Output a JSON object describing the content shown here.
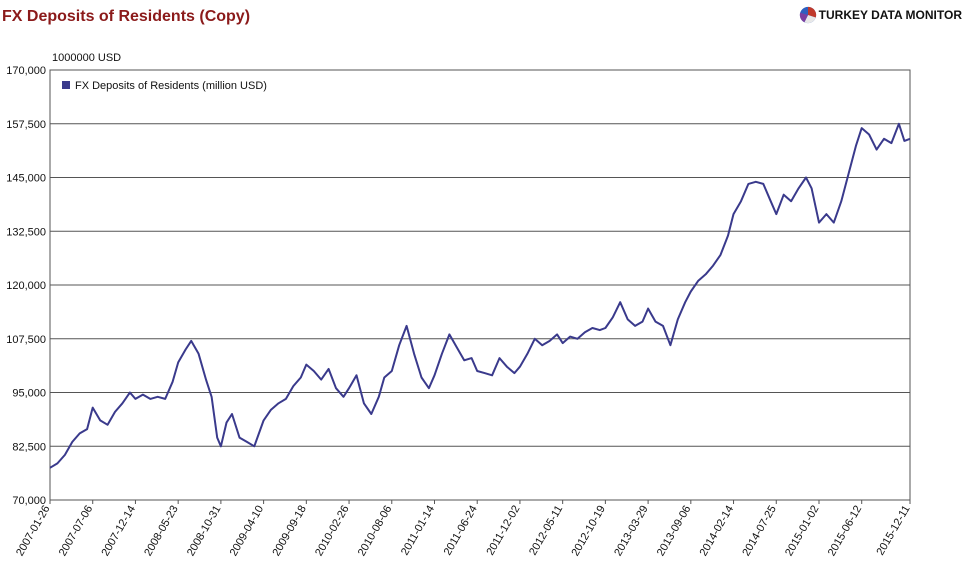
{
  "header": {
    "title": "FX Deposits of Residents (Copy)",
    "brand": "TURKEY DATA MONITOR",
    "brand_icon": "pie-logo-icon"
  },
  "colors": {
    "title": "#8b1a1a",
    "series": "#3a3a8c",
    "grid": "#555555"
  },
  "chart_data": {
    "type": "line",
    "y_unit_label": "1000000 USD",
    "ylim": [
      70000,
      170000
    ],
    "y_ticks": [
      "70,000",
      "82,500",
      "95,000",
      "107,500",
      "120,000",
      "132,500",
      "145,000",
      "157,500",
      "170,000"
    ],
    "y_tick_values": [
      70000,
      82500,
      95000,
      107500,
      120000,
      132500,
      145000,
      157500,
      170000
    ],
    "x_range": [
      "2007-01-26",
      "2015-12-11"
    ],
    "x_ticks": [
      "2007-01-26",
      "2007-07-06",
      "2007-12-14",
      "2008-05-23",
      "2008-10-31",
      "2009-04-10",
      "2009-09-18",
      "2010-02-26",
      "2010-08-06",
      "2011-01-14",
      "2011-06-24",
      "2011-12-02",
      "2012-05-11",
      "2012-10-19",
      "2013-03-29",
      "2013-09-06",
      "2014-02-14",
      "2014-07-25",
      "2015-01-02",
      "2015-06-12",
      "2015-12-11"
    ],
    "grid": true,
    "legend_position": "top-left",
    "series": [
      {
        "name": "FX Deposits of Residents (million USD)",
        "points": [
          [
            "2007-01-26",
            77500
          ],
          [
            "2007-02-23",
            78500
          ],
          [
            "2007-03-23",
            80500
          ],
          [
            "2007-04-20",
            83500
          ],
          [
            "2007-05-18",
            85500
          ],
          [
            "2007-06-15",
            86500
          ],
          [
            "2007-07-06",
            91500
          ],
          [
            "2007-08-03",
            88500
          ],
          [
            "2007-08-31",
            87500
          ],
          [
            "2007-09-28",
            90500
          ],
          [
            "2007-10-26",
            92500
          ],
          [
            "2007-11-23",
            95000
          ],
          [
            "2007-12-14",
            93500
          ],
          [
            "2008-01-11",
            94500
          ],
          [
            "2008-02-08",
            93500
          ],
          [
            "2008-03-07",
            94000
          ],
          [
            "2008-04-04",
            93500
          ],
          [
            "2008-05-02",
            97500
          ],
          [
            "2008-05-23",
            102000
          ],
          [
            "2008-06-20",
            105000
          ],
          [
            "2008-07-11",
            107000
          ],
          [
            "2008-08-08",
            104000
          ],
          [
            "2008-09-05",
            98000
          ],
          [
            "2008-09-26",
            94000
          ],
          [
            "2008-10-17",
            84500
          ],
          [
            "2008-10-31",
            82500
          ],
          [
            "2008-11-21",
            88000
          ],
          [
            "2008-12-12",
            90000
          ],
          [
            "2009-01-09",
            84500
          ],
          [
            "2009-02-06",
            83500
          ],
          [
            "2009-03-06",
            82500
          ],
          [
            "2009-04-10",
            88500
          ],
          [
            "2009-05-08",
            91000
          ],
          [
            "2009-06-05",
            92500
          ],
          [
            "2009-07-03",
            93500
          ],
          [
            "2009-07-31",
            96500
          ],
          [
            "2009-08-28",
            98500
          ],
          [
            "2009-09-18",
            101500
          ],
          [
            "2009-10-16",
            100000
          ],
          [
            "2009-11-13",
            98000
          ],
          [
            "2009-12-11",
            100500
          ],
          [
            "2010-01-08",
            96000
          ],
          [
            "2010-02-05",
            94000
          ],
          [
            "2010-02-26",
            96000
          ],
          [
            "2010-03-26",
            99000
          ],
          [
            "2010-04-23",
            92500
          ],
          [
            "2010-05-21",
            90000
          ],
          [
            "2010-06-18",
            94000
          ],
          [
            "2010-07-09",
            98500
          ],
          [
            "2010-08-06",
            100000
          ],
          [
            "2010-09-03",
            106000
          ],
          [
            "2010-10-01",
            110500
          ],
          [
            "2010-10-29",
            104000
          ],
          [
            "2010-11-26",
            98500
          ],
          [
            "2010-12-24",
            96000
          ],
          [
            "2011-01-14",
            99000
          ],
          [
            "2011-02-11",
            104000
          ],
          [
            "2011-03-11",
            108500
          ],
          [
            "2011-04-08",
            105500
          ],
          [
            "2011-05-06",
            102500
          ],
          [
            "2011-06-03",
            103000
          ],
          [
            "2011-06-24",
            100000
          ],
          [
            "2011-07-22",
            99500
          ],
          [
            "2011-08-19",
            99000
          ],
          [
            "2011-09-16",
            103000
          ],
          [
            "2011-10-14",
            101000
          ],
          [
            "2011-11-11",
            99500
          ],
          [
            "2011-12-02",
            101000
          ],
          [
            "2011-12-30",
            104000
          ],
          [
            "2012-01-27",
            107500
          ],
          [
            "2012-02-24",
            106000
          ],
          [
            "2012-03-23",
            107000
          ],
          [
            "2012-04-20",
            108500
          ],
          [
            "2012-05-11",
            106500
          ],
          [
            "2012-06-08",
            108000
          ],
          [
            "2012-07-06",
            107500
          ],
          [
            "2012-08-03",
            109000
          ],
          [
            "2012-08-31",
            110000
          ],
          [
            "2012-09-28",
            109500
          ],
          [
            "2012-10-19",
            110000
          ],
          [
            "2012-11-16",
            112500
          ],
          [
            "2012-12-14",
            116000
          ],
          [
            "2013-01-11",
            112000
          ],
          [
            "2013-02-08",
            110500
          ],
          [
            "2013-03-08",
            111500
          ],
          [
            "2013-03-29",
            114500
          ],
          [
            "2013-04-26",
            111500
          ],
          [
            "2013-05-24",
            110500
          ],
          [
            "2013-06-21",
            106000
          ],
          [
            "2013-07-19",
            112000
          ],
          [
            "2013-08-16",
            116000
          ],
          [
            "2013-09-06",
            118500
          ],
          [
            "2013-10-04",
            121000
          ],
          [
            "2013-11-01",
            122500
          ],
          [
            "2013-11-29",
            124500
          ],
          [
            "2013-12-27",
            127000
          ],
          [
            "2014-01-24",
            131500
          ],
          [
            "2014-02-14",
            136500
          ],
          [
            "2014-03-14",
            139500
          ],
          [
            "2014-04-11",
            143500
          ],
          [
            "2014-05-09",
            144000
          ],
          [
            "2014-06-06",
            143500
          ],
          [
            "2014-07-04",
            139500
          ],
          [
            "2014-07-25",
            136500
          ],
          [
            "2014-08-22",
            141000
          ],
          [
            "2014-09-19",
            139500
          ],
          [
            "2014-10-17",
            142500
          ],
          [
            "2014-11-14",
            145000
          ],
          [
            "2014-12-05",
            142500
          ],
          [
            "2015-01-02",
            134500
          ],
          [
            "2015-01-30",
            136500
          ],
          [
            "2015-02-27",
            134500
          ],
          [
            "2015-03-27",
            139500
          ],
          [
            "2015-04-24",
            146000
          ],
          [
            "2015-05-22",
            152500
          ],
          [
            "2015-06-12",
            156500
          ],
          [
            "2015-07-10",
            155000
          ],
          [
            "2015-08-07",
            151500
          ],
          [
            "2015-09-04",
            154000
          ],
          [
            "2015-10-02",
            153000
          ],
          [
            "2015-10-30",
            157500
          ],
          [
            "2015-11-20",
            153500
          ],
          [
            "2015-12-11",
            154000
          ]
        ]
      }
    ]
  }
}
